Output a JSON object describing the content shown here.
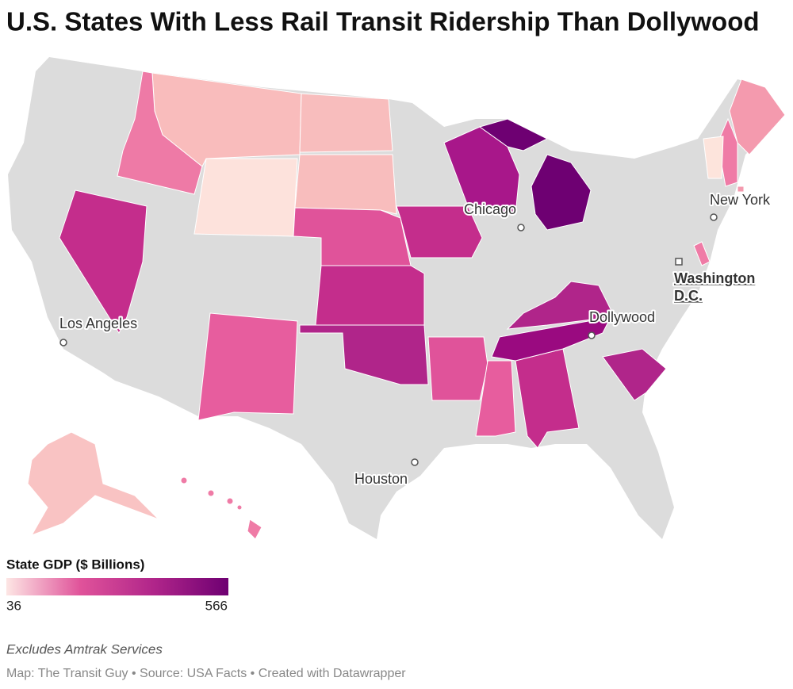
{
  "header": {
    "title": "U.S. States With Less Rail Transit Ridership Than Dollywood"
  },
  "map": {
    "cities": [
      {
        "label": [
          "Chicago"
        ]
      },
      {
        "label": [
          "New York"
        ]
      },
      {
        "label": [
          "Washington",
          "D.C."
        ]
      },
      {
        "label": [
          "Los Angeles"
        ]
      },
      {
        "label": [
          "Dollywood"
        ]
      },
      {
        "label": [
          "Houston"
        ]
      }
    ]
  },
  "legend": {
    "title": "State GDP ($ Billions)",
    "min": 36,
    "max": 566,
    "colors": [
      "#fde6e4",
      "#e0539a",
      "#b0258a",
      "#6e0072"
    ]
  },
  "notes": "Excludes Amtrak Services",
  "credit": "Map: The Transit Guy • Source: USA Facts • Created with Datawrapper"
}
